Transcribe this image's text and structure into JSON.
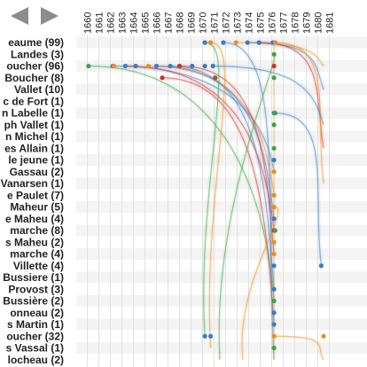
{
  "nav": {
    "prev_icon": "triangle-left-icon",
    "next_icon": "triangle-right-icon"
  },
  "chart_data": {
    "type": "line",
    "years": [
      "1660",
      "1661",
      "1662",
      "1663",
      "1664",
      "1665",
      "1666",
      "1667",
      "1668",
      "1669",
      "1670",
      "1671",
      "1672",
      "1673",
      "1674",
      "1675",
      "1676",
      "1677",
      "1678",
      "1679",
      "1680",
      "1681"
    ],
    "rows": [
      "...eaume (99)",
      "... Landes (3)",
      "...oucher (96)",
      "... Boucher (8)",
      "... Vallet (10)",
      "...c de Fort (1)",
      "...n Labelle (1)",
      "...ph Vallet (1)",
      "...n Michel (1)",
      "...es Allain (1)",
      "... le jeune (1)",
      "... Gassau (2)",
      "...Vanarsen (1)",
      "...e Paulet (7)",
      "... Maheur (5)",
      "...e Maheu (4)",
      "...marche (8)",
      "...s Maheu (2)",
      "...marche (4)",
      "... Villette (4)",
      "...Bussiere (1)",
      "... Provost (3)",
      "...Bussière (2)",
      "...onneau (2)",
      "...s Martin (1)",
      "...oucher (32)",
      "...s Vassal (1)",
      "...locheau (2)"
    ],
    "colors": {
      "blue": "#3a7bc8",
      "orange": "#f08c1e",
      "green": "#3aa642",
      "red": "#d0302c",
      "brown": "#8c5a3c"
    },
    "points": [
      {
        "row": 0,
        "year": 1670.7,
        "color": "blue"
      },
      {
        "row": 0,
        "year": 1671.2,
        "color": "orange"
      },
      {
        "row": 0,
        "year": 1672.3,
        "color": "blue"
      },
      {
        "row": 0,
        "year": 1673.4,
        "color": "orange"
      },
      {
        "row": 0,
        "year": 1674.4,
        "color": "blue"
      },
      {
        "row": 0,
        "year": 1675.4,
        "color": "blue"
      },
      {
        "row": 0,
        "year": 1676.6,
        "color": "blue"
      },
      {
        "row": 0,
        "year": 1676.8,
        "color": "orange"
      },
      {
        "row": 1,
        "year": 1676.7,
        "color": "green"
      },
      {
        "row": 2,
        "year": 1660.6,
        "color": "green"
      },
      {
        "row": 2,
        "year": 1662.7,
        "color": "blue"
      },
      {
        "row": 2,
        "year": 1662.8,
        "color": "orange"
      },
      {
        "row": 2,
        "year": 1663.8,
        "color": "blue"
      },
      {
        "row": 2,
        "year": 1664.7,
        "color": "blue"
      },
      {
        "row": 2,
        "year": 1665.8,
        "color": "orange"
      },
      {
        "row": 2,
        "year": 1666.5,
        "color": "blue"
      },
      {
        "row": 2,
        "year": 1667.7,
        "color": "blue"
      },
      {
        "row": 2,
        "year": 1668.5,
        "color": "red"
      },
      {
        "row": 2,
        "year": 1669.6,
        "color": "blue"
      },
      {
        "row": 2,
        "year": 1670.7,
        "color": "blue"
      },
      {
        "row": 2,
        "year": 1671.4,
        "color": "blue"
      },
      {
        "row": 2,
        "year": 1676.7,
        "color": "red"
      },
      {
        "row": 3,
        "year": 1667.0,
        "color": "red"
      },
      {
        "row": 3,
        "year": 1671.6,
        "color": "brown"
      },
      {
        "row": 3,
        "year": 1676.7,
        "color": "green"
      },
      {
        "row": 6,
        "year": 1676.7,
        "color": "blue"
      },
      {
        "row": 6,
        "year": 1676.8,
        "color": "green"
      },
      {
        "row": 7,
        "year": 1676.7,
        "color": "green"
      },
      {
        "row": 9,
        "year": 1676.7,
        "color": "green"
      },
      {
        "row": 10,
        "year": 1676.7,
        "color": "blue"
      },
      {
        "row": 11,
        "year": 1676.7,
        "color": "orange"
      },
      {
        "row": 13,
        "year": 1676.7,
        "color": "orange"
      },
      {
        "row": 14,
        "year": 1676.7,
        "color": "orange"
      },
      {
        "row": 15,
        "year": 1676.7,
        "color": "blue"
      },
      {
        "row": 16,
        "year": 1676.7,
        "color": "red"
      },
      {
        "row": 16,
        "year": 1676.8,
        "color": "green"
      },
      {
        "row": 17,
        "year": 1676.7,
        "color": "orange"
      },
      {
        "row": 18,
        "year": 1676.7,
        "color": "orange"
      },
      {
        "row": 19,
        "year": 1676.7,
        "color": "blue"
      },
      {
        "row": 19,
        "year": 1680.8,
        "color": "blue"
      },
      {
        "row": 21,
        "year": 1676.7,
        "color": "blue"
      },
      {
        "row": 22,
        "year": 1676.7,
        "color": "green"
      },
      {
        "row": 23,
        "year": 1676.7,
        "color": "blue"
      },
      {
        "row": 24,
        "year": 1676.7,
        "color": "blue"
      },
      {
        "row": 25,
        "year": 1670.7,
        "color": "blue"
      },
      {
        "row": 25,
        "year": 1671.2,
        "color": "blue"
      },
      {
        "row": 25,
        "year": 1676.7,
        "color": "orange"
      },
      {
        "row": 25,
        "year": 1681.0,
        "color": "orange"
      },
      {
        "row": 26,
        "year": 1676.7,
        "color": "green"
      }
    ],
    "links": [
      {
        "from_row": 2,
        "from_year": 1662.7,
        "to_row": 11,
        "to_year": 1676.7,
        "color": "blue"
      },
      {
        "from_row": 2,
        "from_year": 1663.8,
        "to_row": 16,
        "to_year": 1676.7,
        "color": "red"
      },
      {
        "from_row": 2,
        "from_year": 1665.8,
        "to_row": 13,
        "to_year": 1676.7,
        "color": "orange"
      },
      {
        "from_row": 2,
        "from_year": 1666.5,
        "to_row": 15,
        "to_year": 1676.7,
        "color": "blue"
      },
      {
        "from_row": 2,
        "from_year": 1667.7,
        "to_row": 21,
        "to_year": 1676.7,
        "color": "blue"
      },
      {
        "from_row": 2,
        "from_year": 1668.5,
        "to_row": 18,
        "to_year": 1676.7,
        "color": "red"
      },
      {
        "from_row": 2,
        "from_year": 1660.6,
        "to_row": 22,
        "to_year": 1676.7,
        "color": "green"
      },
      {
        "from_row": 3,
        "from_year": 1667.0,
        "to_row": 24,
        "to_year": 1676.7,
        "color": "red"
      },
      {
        "from_row": 0,
        "from_year": 1672.3,
        "to_row": 27,
        "to_year": 1676.7,
        "color": "blue"
      },
      {
        "from_row": 0,
        "from_year": 1673.4,
        "to_row": 2,
        "to_year": 1681.0,
        "color": "orange"
      },
      {
        "from_row": 0,
        "from_year": 1674.4,
        "to_row": 4,
        "to_year": 1681.0,
        "color": "blue"
      },
      {
        "from_row": 0,
        "from_year": 1675.4,
        "to_row": 9,
        "to_year": 1681.0,
        "color": "red"
      },
      {
        "from_row": 0,
        "from_year": 1676.8,
        "to_row": 12,
        "to_year": 1681.0,
        "color": "orange"
      },
      {
        "from_row": 0,
        "from_year": 1670.7,
        "to_row": 25,
        "to_year": 1670.7,
        "color": "green"
      },
      {
        "from_row": 0,
        "from_year": 1671.2,
        "to_row": 26,
        "to_year": 1671.2,
        "color": "orange"
      },
      {
        "from_row": 25,
        "from_year": 1676.7,
        "to_row": 27,
        "to_year": 1681.0,
        "color": "orange"
      },
      {
        "from_row": 6,
        "from_year": 1676.7,
        "to_row": 19,
        "to_year": 1680.8,
        "color": "blue"
      },
      {
        "from_row": 1,
        "from_year": 1676.7,
        "to_row": 27,
        "to_year": 1672.0,
        "color": "green"
      },
      {
        "from_row": 14,
        "from_year": 1676.7,
        "to_row": 27,
        "to_year": 1674.0,
        "color": "orange"
      },
      {
        "from_row": 2,
        "from_year": 1671.4,
        "to_row": 7,
        "to_year": 1681.0,
        "color": "blue"
      }
    ]
  }
}
